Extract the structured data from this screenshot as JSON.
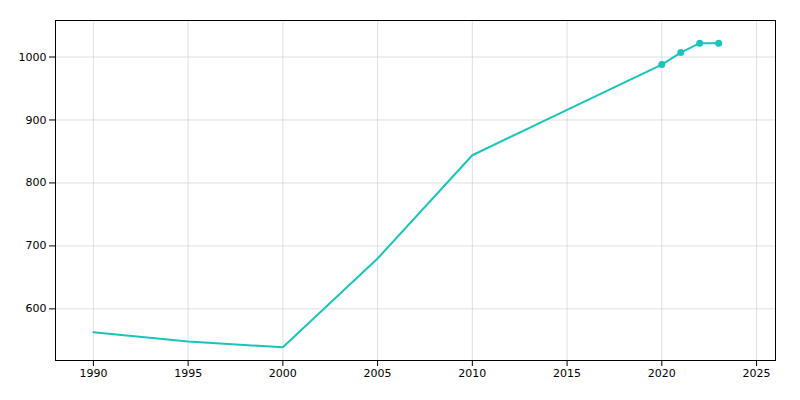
{
  "chart_data": {
    "type": "line",
    "x": [
      1990,
      1995,
      2000,
      2005,
      2010,
      2015,
      2020,
      2021,
      2022,
      2023
    ],
    "series": [
      {
        "type": "line",
        "color": "#18C5BC",
        "values": [
          563,
          548,
          539,
          680,
          844,
          916,
          988,
          1007,
          1022,
          1022
        ]
      },
      {
        "type": "scatter",
        "color": "#18C5BC",
        "marker": "circle",
        "values": [
          null,
          null,
          null,
          null,
          null,
          null,
          988,
          1007,
          1022,
          1022
        ]
      }
    ],
    "xlim": [
      1988,
      2026
    ],
    "ylim": [
      518,
      1058
    ],
    "xticks": [
      1990,
      1995,
      2000,
      2005,
      2010,
      2015,
      2020,
      2025
    ],
    "yticks": [
      600,
      700,
      800,
      900,
      1000
    ],
    "grid": true
  }
}
